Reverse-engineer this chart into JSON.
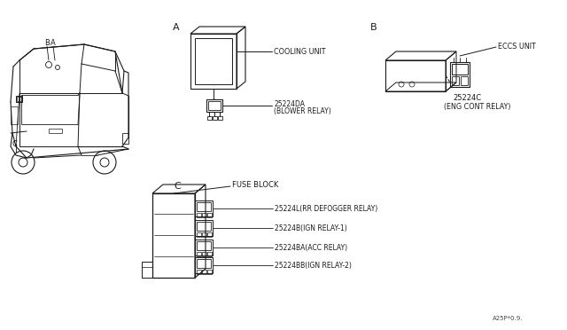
{
  "bg_color": "#ffffff",
  "line_color": "#1a1a1a",
  "text_color": "#1a1a1a",
  "fig_width": 6.4,
  "fig_height": 3.72,
  "dpi": 100,
  "footer_text": "A25P*0.9.",
  "section_A_label": "A",
  "section_B_label": "B",
  "section_C_label": "C",
  "cooling_unit_label": "COOLING UNIT",
  "blower_relay_part": "25224DA",
  "blower_relay_name": "(BLOWER RELAY)",
  "eccs_unit_label": "ECCS UNIT",
  "eng_cont_part": "25224C",
  "eng_cont_name": "(ENG CONT RELAY)",
  "fuse_block_label": "FUSE BLOCK",
  "relay1_part": "25224L(RR DEFOGGER RELAY)",
  "relay2_part": "25224B(IGN RELAY-1)",
  "relay3_part": "25224BA(ACC RELAY)",
  "relay4_part": "25224BB(IGN RELAY-2)"
}
